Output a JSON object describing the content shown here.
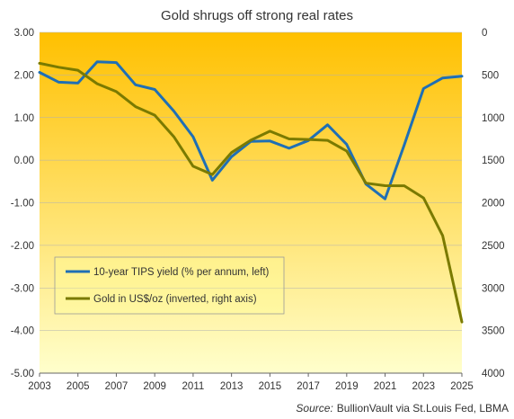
{
  "chart_data": {
    "type": "line",
    "title": "Gold shrugs  off strong real rates",
    "source_label": "Source:",
    "source_text": "BullionVault via St.Louis Fed, LBMA",
    "x": [
      2003,
      2004,
      2005,
      2006,
      2007,
      2008,
      2009,
      2010,
      2011,
      2012,
      2013,
      2014,
      2015,
      2016,
      2017,
      2018,
      2019,
      2020,
      2021,
      2022,
      2023,
      2024,
      2025
    ],
    "x_ticks": [
      "2003",
      "2005",
      "2007",
      "2009",
      "2011",
      "2013",
      "2015",
      "2017",
      "2019",
      "2021",
      "2023",
      "2025"
    ],
    "y_left": {
      "ylim": [
        -5,
        3
      ],
      "ticks": [
        "3.00",
        "2.00",
        "1.00",
        "0.00",
        "-1.00",
        "-2.00",
        "-3.00",
        "-4.00",
        "-5.00"
      ]
    },
    "y_right": {
      "ylim": [
        0,
        4000
      ],
      "inverted": true,
      "ticks": [
        "0",
        "500",
        "1000",
        "1500",
        "2000",
        "2500",
        "3000",
        "3500",
        "4000"
      ]
    },
    "series": [
      {
        "name": "10-year TIPS yield (% per annum, left)",
        "axis": "left",
        "color": "#1f6fb5",
        "values": [
          2.06,
          1.83,
          1.81,
          2.31,
          2.29,
          1.77,
          1.66,
          1.15,
          0.55,
          -0.47,
          0.08,
          0.44,
          0.45,
          0.28,
          0.46,
          0.83,
          0.37,
          -0.56,
          -0.91,
          0.36,
          1.68,
          1.93,
          1.97
        ]
      },
      {
        "name": "Gold in US$/oz (inverted, right axis)",
        "axis": "right",
        "color": "#7a7a00",
        "values": [
          363,
          409,
          444,
          603,
          695,
          872,
          972,
          1225,
          1572,
          1669,
          1411,
          1266,
          1160,
          1251,
          1257,
          1268,
          1393,
          1770,
          1799,
          1800,
          1943,
          2386,
          3400
        ]
      }
    ],
    "grid": "horizontal",
    "legend_position": "lower-left",
    "background": {
      "top": "#ffc000",
      "bottom": "#ffffcc"
    }
  }
}
